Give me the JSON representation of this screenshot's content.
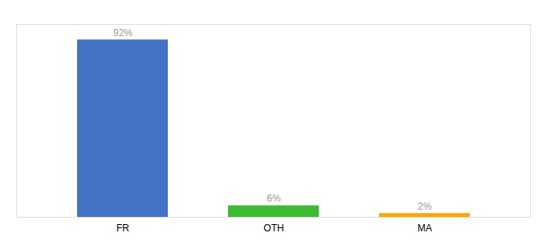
{
  "chart_data": {
    "type": "bar",
    "categories": [
      "FR",
      "OTH",
      "MA"
    ],
    "values": [
      92,
      6,
      2
    ],
    "value_labels": [
      "92%",
      "6%",
      "2%"
    ],
    "colors": [
      "#4472c4",
      "#3dbb35",
      "#FFA500"
    ],
    "ylim": [
      0,
      100
    ],
    "grid": false,
    "data_labels": true,
    "tick_labels": "x"
  }
}
